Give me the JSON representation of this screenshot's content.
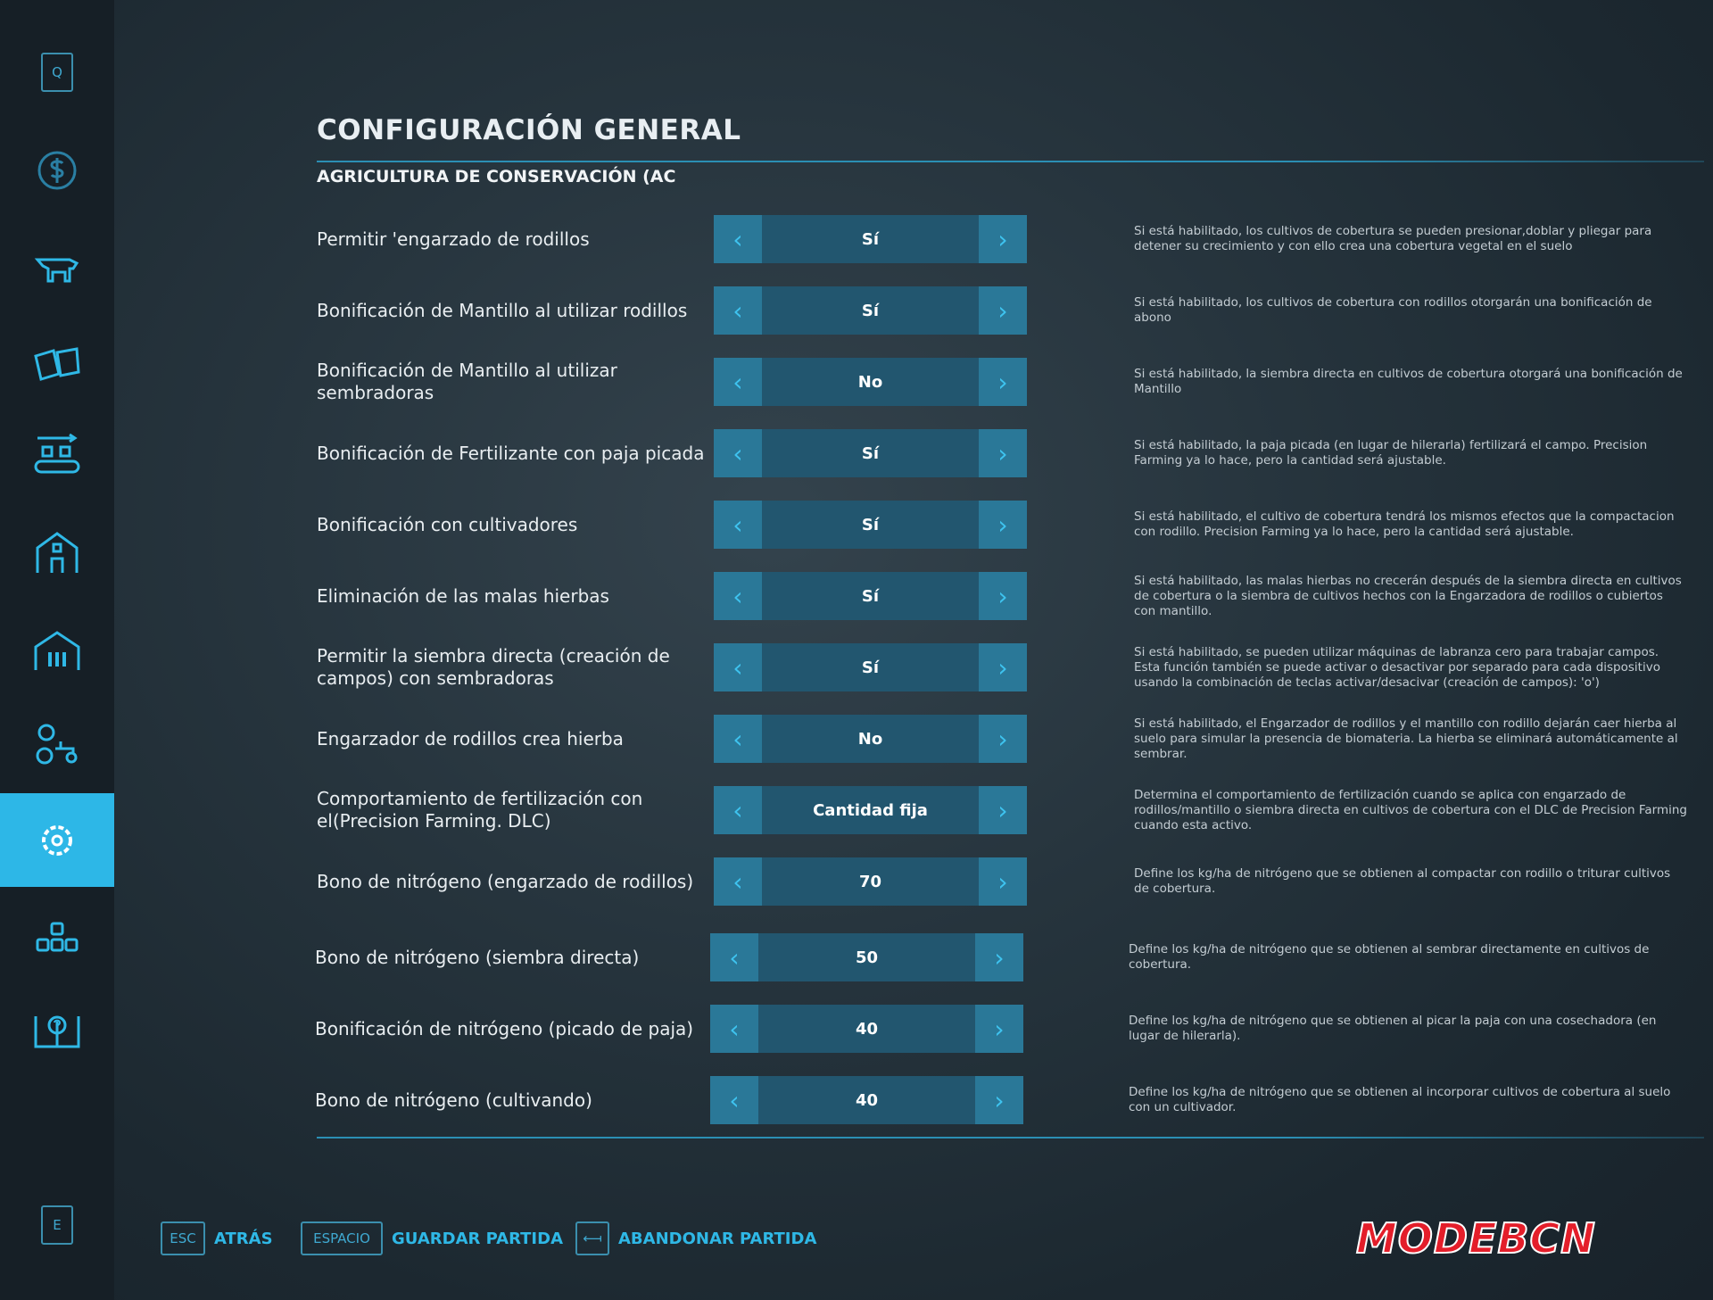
{
  "sidebar": {
    "top_key": "Q",
    "bottom_key": "E",
    "items": [
      {
        "icon": "dollar-icon"
      },
      {
        "icon": "cow-icon"
      },
      {
        "icon": "contracts-icon"
      },
      {
        "icon": "production-icon"
      },
      {
        "icon": "barn-icon"
      },
      {
        "icon": "workers-barn-icon"
      },
      {
        "icon": "tractor-gear-icon"
      },
      {
        "icon": "settings-gear-icon",
        "active": true
      },
      {
        "icon": "hierarchy-icon"
      },
      {
        "icon": "help-book-icon"
      }
    ]
  },
  "header": {
    "title": "CONFIGURACIÓN GENERAL",
    "subtitle": "AGRICULTURA DE CONSERVACIÓN (AC"
  },
  "colors": {
    "accent": "#2db7e7",
    "selector_arrow": "#2a7898",
    "selector_value": "#22566f"
  },
  "settings": [
    {
      "label": "Permitir 'engarzado de rodillos",
      "value": "Sí",
      "description": "Si está habilitado, los cultivos de cobertura se pueden presionar,doblar y pliegar para detener su crecimiento y con ello crea una cobertura vegetal en el suelo"
    },
    {
      "label": "Bonificación de Mantillo al utilizar rodillos",
      "value": "Sí",
      "description": "Si está habilitado, los cultivos de cobertura con rodillos otorgarán una bonificación de abono"
    },
    {
      "label": "Bonificación de Mantillo al utilizar sembradoras",
      "value": "No",
      "description": "Si está habilitado, la siembra directa en cultivos de cobertura otorgará una bonificación de Mantillo"
    },
    {
      "label": "Bonificación de Fertilizante con paja picada",
      "value": "Sí",
      "description": "Si está habilitado, la paja picada (en lugar de hilerarla) fertilizará el campo. Precision Farming ya lo hace, pero la cantidad será ajustable."
    },
    {
      "label": "Bonificación con cultivadores",
      "value": "Sí",
      "description": "Si está habilitado, el cultivo de cobertura tendrá los mismos efectos que la compactacion con rodillo. Precision Farming ya lo hace, pero la cantidad será ajustable."
    },
    {
      "label": "Eliminación de las malas hierbas",
      "value": "Sí",
      "description": "Si está habilitado, las malas hierbas no crecerán después de la siembra directa en cultivos de cobertura o la siembra de cultivos hechos con la Engarzadora de rodillos o cubiertos con mantillo."
    },
    {
      "label": "Permitir la siembra directa (creación de campos) con sembradoras",
      "value": "Sí",
      "description": "Si está habilitado, se pueden utilizar máquinas de labranza cero para trabajar campos. Esta función también se puede activar o desactivar por separado para cada dispositivo usando la combinación de teclas activar/desacivar  (creación de campos): 'o')"
    },
    {
      "label": "Engarzador de rodillos crea hierba",
      "value": "No",
      "description": "Si está habilitado, el Engarzador de rodillos y el mantillo con rodillo dejarán caer hierba al suelo para simular la presencia de biomateria. La hierba se eliminará automáticamente al sembrar."
    },
    {
      "label": "Comportamiento de fertilización con el(Precision Farming. DLC)",
      "value": "Cantidad fija",
      "description": "Determina el comportamiento de fertilización cuando se aplica con engarzado de rodillos/mantillo o siembra directa en cultivos de cobertura con el DLC de Precision Farming cuando esta activo."
    },
    {
      "label": "Bono de nitrógeno (engarzado de rodillos)",
      "value": "70",
      "description": "Define los kg/ha de nitrógeno que se obtienen al compactar con rodillo o triturar cultivos de cobertura."
    },
    {
      "label": "Bono de nitrógeno (siembra directa)",
      "value": "50",
      "description": "Define los kg/ha de nitrógeno que se obtienen al sembrar directamente en cultivos de cobertura."
    },
    {
      "label": "Bonificación de nitrógeno (picado de paja)",
      "value": "40",
      "description": "Define los kg/ha de nitrógeno que se obtienen al picar la paja con una cosechadora (en lugar de hilerarla)."
    },
    {
      "label": "Bono de nitrógeno (cultivando)",
      "value": "40",
      "description": "Define los kg/ha de nitrógeno que se obtienen al incorporar cultivos de cobertura al suelo con un cultivador."
    }
  ],
  "watermark": "MODEBCN",
  "footer": [
    {
      "key": "ESC",
      "label": "ATRÁS"
    },
    {
      "key": "ESPACIO",
      "label": "GUARDAR PARTIDA"
    },
    {
      "key": "⟻",
      "label": "ABANDONAR PARTIDA"
    }
  ]
}
